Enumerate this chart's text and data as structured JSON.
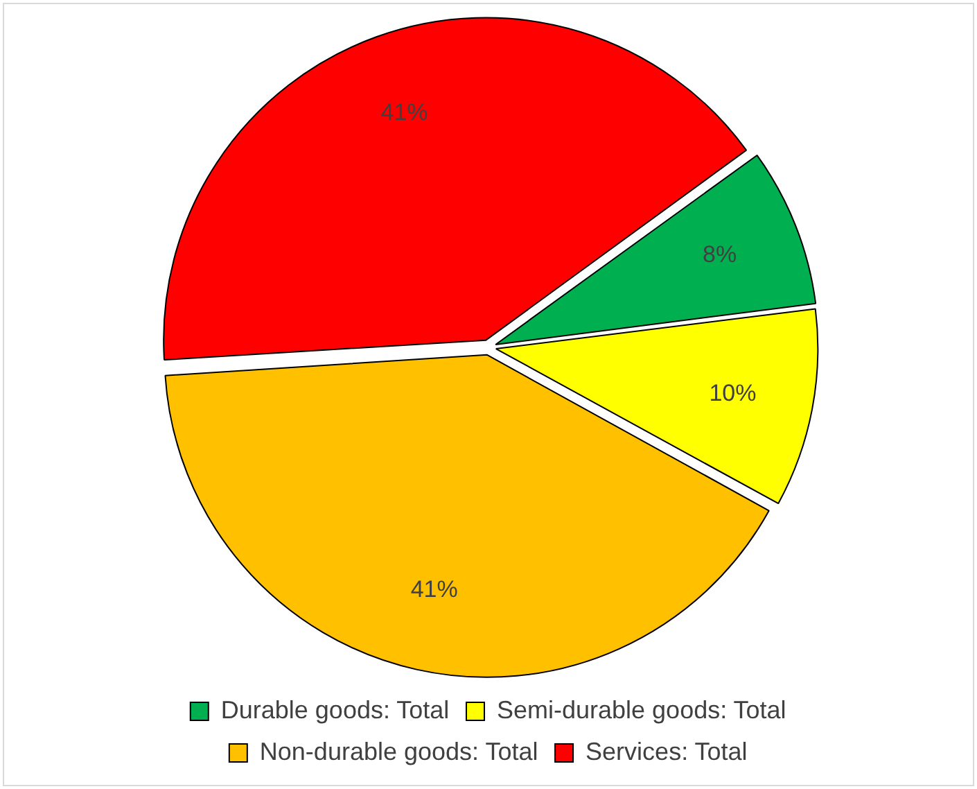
{
  "chart_data": {
    "type": "pie",
    "categories": [
      "Durable goods: Total",
      "Semi-durable goods: Total",
      "Non-durable goods: Total",
      "Services: Total"
    ],
    "values": [
      8,
      10,
      41,
      41
    ],
    "colors": [
      "#00b050",
      "#ffff00",
      "#ffc000",
      "#ff0000"
    ],
    "value_labels": [
      "8%",
      "10%",
      "41%",
      "41%"
    ],
    "legend": "bottom"
  }
}
